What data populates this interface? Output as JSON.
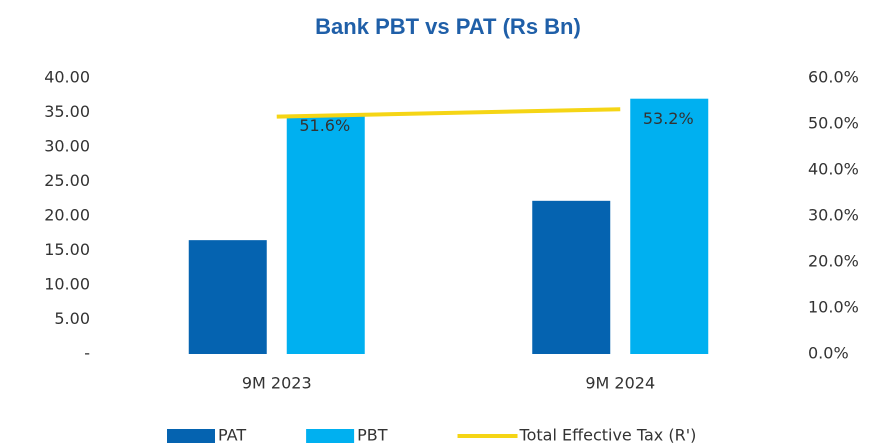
{
  "chart_data": {
    "type": "bar_line",
    "title": "Bank PBT vs PAT (Rs Bn)",
    "categories": [
      "9M 2023",
      "9M 2024"
    ],
    "series": [
      {
        "name": "PAT",
        "color": "#0563b0",
        "values": [
          16.5,
          22.2
        ]
      },
      {
        "name": "PBT",
        "color": "#00b0f0",
        "values": [
          34.5,
          37.0
        ]
      },
      {
        "name": "Total Effective Tax (R')",
        "color": "#f5d515",
        "type": "line",
        "axis": "y2",
        "values": [
          51.6,
          53.2
        ],
        "value_labels": [
          "51.6%",
          "53.2%"
        ]
      }
    ],
    "ylim": [
      0,
      40
    ],
    "yticks": [
      {
        "value": 0,
        "label": "-"
      },
      {
        "value": 5,
        "label": "5.00"
      },
      {
        "value": 10,
        "label": "10.00"
      },
      {
        "value": 15,
        "label": "15.00"
      },
      {
        "value": 20,
        "label": "20.00"
      },
      {
        "value": 25,
        "label": "25.00"
      },
      {
        "value": 30,
        "label": "30.00"
      },
      {
        "value": 35,
        "label": "35.00"
      },
      {
        "value": 40,
        "label": "40.00"
      }
    ],
    "y2lim": [
      0,
      60
    ],
    "y2ticks": [
      {
        "value": 0,
        "label": "0.0%"
      },
      {
        "value": 10,
        "label": "10.0%"
      },
      {
        "value": 20,
        "label": "20.0%"
      },
      {
        "value": 30,
        "label": "30.0%"
      },
      {
        "value": 40,
        "label": "40.0%"
      },
      {
        "value": 50,
        "label": "50.0%"
      },
      {
        "value": 60,
        "label": "60.0%"
      }
    ],
    "grid": false,
    "legend": "bottom"
  }
}
